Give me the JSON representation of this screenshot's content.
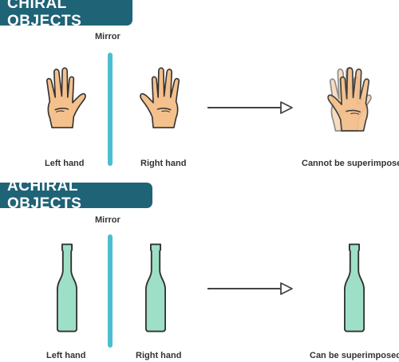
{
  "colors": {
    "header_bg": "#1f6377",
    "header_text": "#ffffff",
    "mirror": "#4bbed1",
    "skin": "#f4c08c",
    "bottle": "#9ee0c7",
    "outline": "#333333",
    "arrow": "#444444"
  },
  "chiral": {
    "title": "CHIRAL OBJECTS",
    "mirror_label": "Mirror",
    "left_caption": "Left hand",
    "right_caption": "Right hand",
    "result_caption": "Cannot be superimposed"
  },
  "achiral": {
    "title": "ACHIRAL OBJECTS",
    "mirror_label": "Mirror",
    "left_caption": "Left hand",
    "right_caption": "Right hand",
    "result_caption": "Can be superimposed"
  }
}
